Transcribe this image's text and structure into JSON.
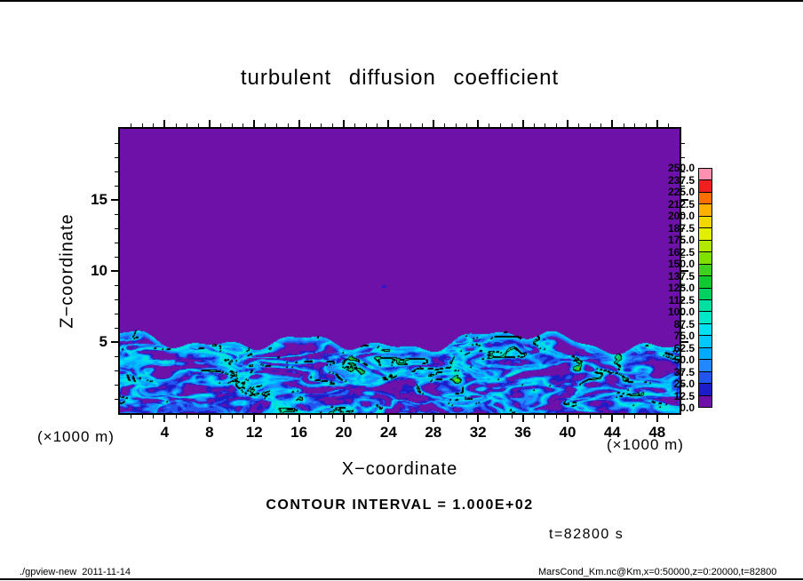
{
  "page": {
    "footer_left": "./gpview-new  2011-11-14",
    "footer_right": "MarsCond_Km.nc@Km,x=0:50000,z=0:20000,t=82800"
  },
  "chart_data": {
    "type": "heatmap",
    "title": "turbulent diffusion coefficient",
    "xlabel": "X−coordinate",
    "ylabel": "Z−coordinate",
    "x_axis_unit": "(×1000 m)",
    "y_axis_unit": "(×1000 m)",
    "x_range_m": [
      0,
      50000
    ],
    "z_range_m": [
      0,
      20000
    ],
    "x_ticks": [
      4,
      8,
      12,
      16,
      20,
      24,
      28,
      32,
      36,
      40,
      44,
      48
    ],
    "z_ticks": [
      5,
      10,
      15
    ],
    "grid": false,
    "legend_position": "right-colorbar",
    "contour_interval": 100,
    "contour_interval_label": "CONTOUR INTERVAL = 1.000E+02",
    "time_label": "t=82800 s",
    "colorbar": {
      "min": 0,
      "max": 250,
      "level_step": 12.5,
      "labels_top_to_bottom": [
        "250.0",
        "237.5",
        "225.0",
        "212.5",
        "200.0",
        "187.5",
        "175.0",
        "162.5",
        "150.0",
        "137.5",
        "125.0",
        "112.5",
        "100.0",
        "87.5",
        "75.0",
        "62.5",
        "50.0",
        "37.5",
        "25.0",
        "12.5",
        "0.0"
      ],
      "colors_top_to_bottom": [
        "#ff90b0",
        "#f02020",
        "#ff7000",
        "#ffb000",
        "#f0d800",
        "#e0f000",
        "#b0e800",
        "#80e000",
        "#40d020",
        "#10c830",
        "#00d060",
        "#00e0a0",
        "#00e8c8",
        "#00e0f0",
        "#00c8ff",
        "#00aaff",
        "#2288ff",
        "#2255ee",
        "#1c1cc8",
        "#6e11a8"
      ]
    },
    "field": {
      "background_value": 0,
      "mixed_layer_top_m": 5000,
      "mixed_layer_value_range": [
        0,
        150
      ],
      "detached_eddy": {
        "x_m": 23600,
        "z_m": 8900,
        "value": 24
      },
      "hotspots": [
        [
          8200,
          2300
        ],
        [
          20800,
          3600
        ],
        [
          30200,
          2200
        ],
        [
          40800,
          3200
        ],
        [
          44600,
          3800
        ],
        [
          16000,
          1100
        ]
      ]
    }
  }
}
